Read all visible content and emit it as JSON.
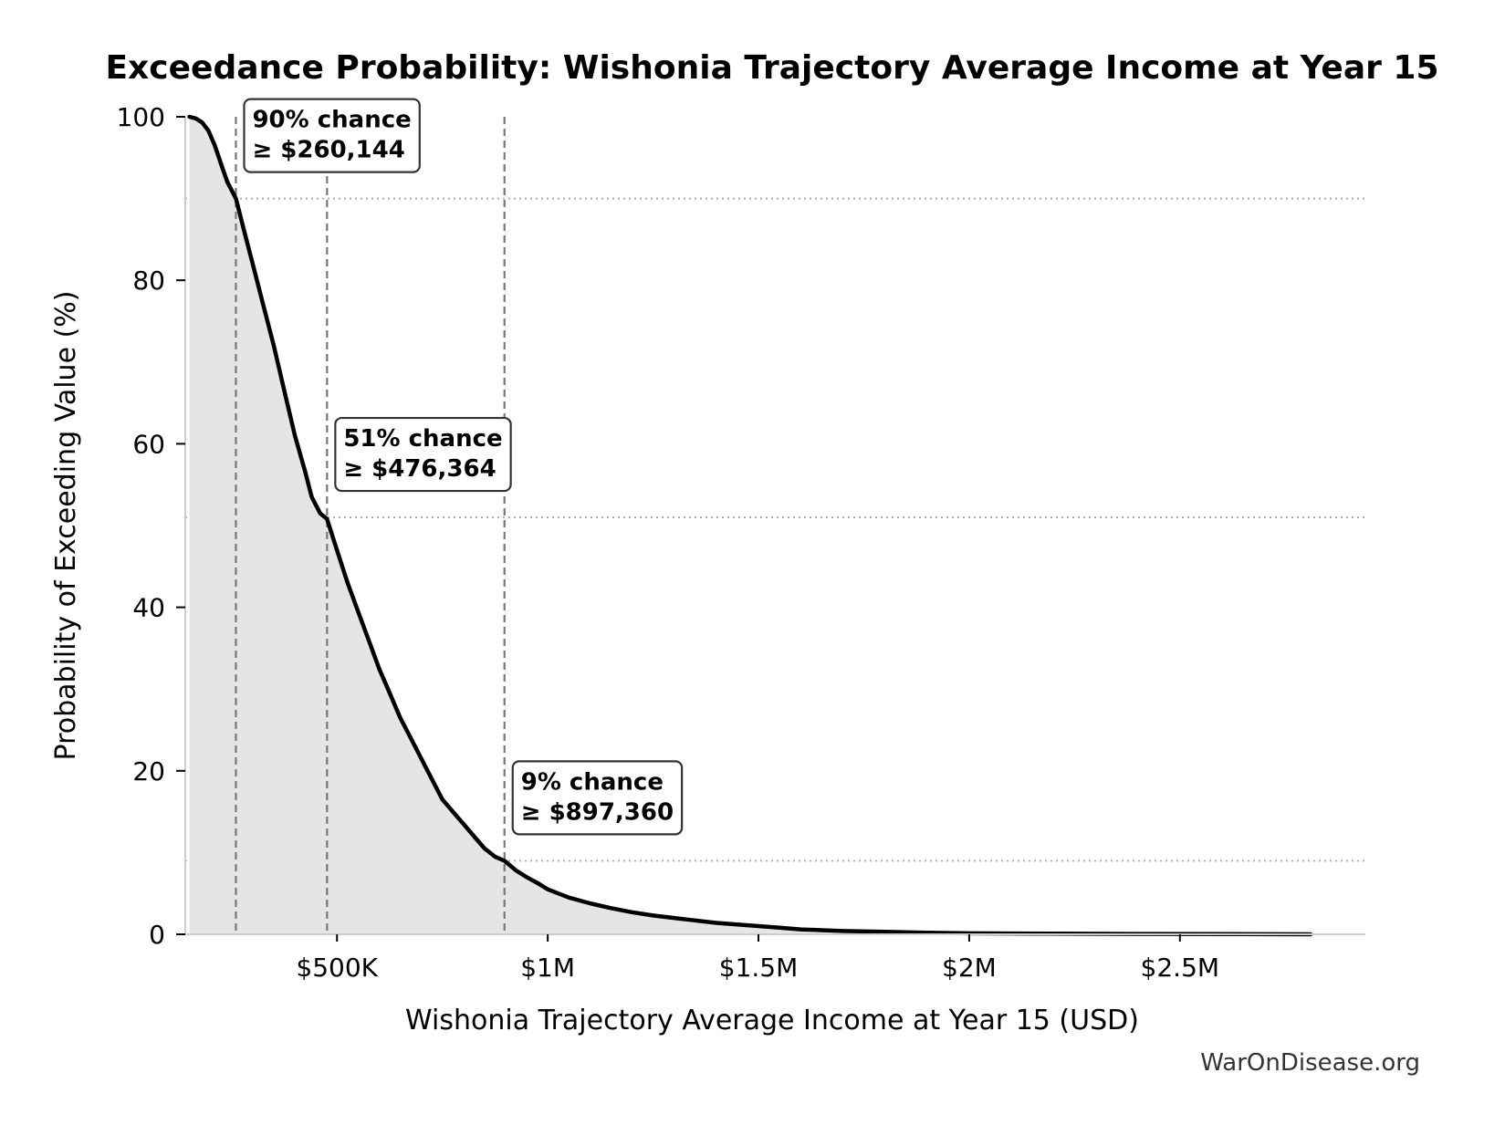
{
  "chart_data": {
    "type": "area",
    "title": "Exceedance Probability: Wishonia Trajectory Average Income at Year 15",
    "xlabel": "Wishonia Trajectory Average Income at Year 15 (USD)",
    "ylabel": "Probability of Exceeding Value (%)",
    "xlim": [
      140000,
      2940000
    ],
    "ylim": [
      0,
      100
    ],
    "x_ticks": [
      {
        "value": 500000,
        "label": "$500K"
      },
      {
        "value": 1000000,
        "label": "$1M"
      },
      {
        "value": 1500000,
        "label": "$1.5M"
      },
      {
        "value": 2000000,
        "label": "$2M"
      },
      {
        "value": 2500000,
        "label": "$2.5M"
      }
    ],
    "y_ticks": [
      {
        "value": 0,
        "label": "0"
      },
      {
        "value": 20,
        "label": "20"
      },
      {
        "value": 40,
        "label": "40"
      },
      {
        "value": 60,
        "label": "60"
      },
      {
        "value": 80,
        "label": "80"
      },
      {
        "value": 100,
        "label": "100"
      }
    ],
    "grid": "horizontal dotted lines at annotated probabilities",
    "legend": "none",
    "series": [
      {
        "x": [
          150000,
          165000,
          180000,
          195000,
          210000,
          225000,
          240000,
          260144,
          280000,
          300000,
          325000,
          350000,
          375000,
          400000,
          425000,
          440000,
          460000,
          476364,
          500000,
          525000,
          550000,
          575000,
          600000,
          625000,
          650000,
          675000,
          700000,
          725000,
          750000,
          775000,
          800000,
          825000,
          850000,
          875000,
          897360,
          925000,
          950000,
          975000,
          1000000,
          1050000,
          1100000,
          1150000,
          1200000,
          1250000,
          1300000,
          1350000,
          1400000,
          1450000,
          1500000,
          1550000,
          1600000,
          1650000,
          1700000,
          1800000,
          1900000,
          2000000,
          2200000,
          2400000,
          2600000,
          2810000
        ],
        "y": [
          100,
          99.8,
          99.3,
          98.3,
          96.5,
          94.2,
          92,
          90,
          86,
          82,
          77,
          72,
          66.5,
          61,
          56.5,
          53.5,
          51.5,
          50.8,
          47,
          43,
          39.5,
          36,
          32.5,
          29.5,
          26.5,
          24,
          21.5,
          19,
          16.5,
          15,
          13.5,
          12,
          10.5,
          9.5,
          9,
          7.8,
          7,
          6.3,
          5.5,
          4.5,
          3.8,
          3.2,
          2.7,
          2.3,
          2.0,
          1.7,
          1.4,
          1.2,
          1.0,
          0.8,
          0.6,
          0.5,
          0.4,
          0.3,
          0.2,
          0.12,
          0.08,
          0.05,
          0.03,
          0
        ]
      }
    ],
    "annotations": [
      {
        "x": 260144,
        "y": 90,
        "line1": "90% chance",
        "line2": "≥ $260,144"
      },
      {
        "x": 476364,
        "y": 51,
        "line1": "51% chance",
        "line2": "≥ $476,364"
      },
      {
        "x": 897360,
        "y": 9,
        "line1": "9% chance",
        "line2": "≥ $897,360"
      }
    ],
    "colors": {
      "line": "#000000",
      "fill": "#e5e5e5",
      "ref_lines": "#777777",
      "grid": "#b0b0b0",
      "box_edge": "#333333"
    }
  },
  "watermark": "WarOnDisease.org"
}
